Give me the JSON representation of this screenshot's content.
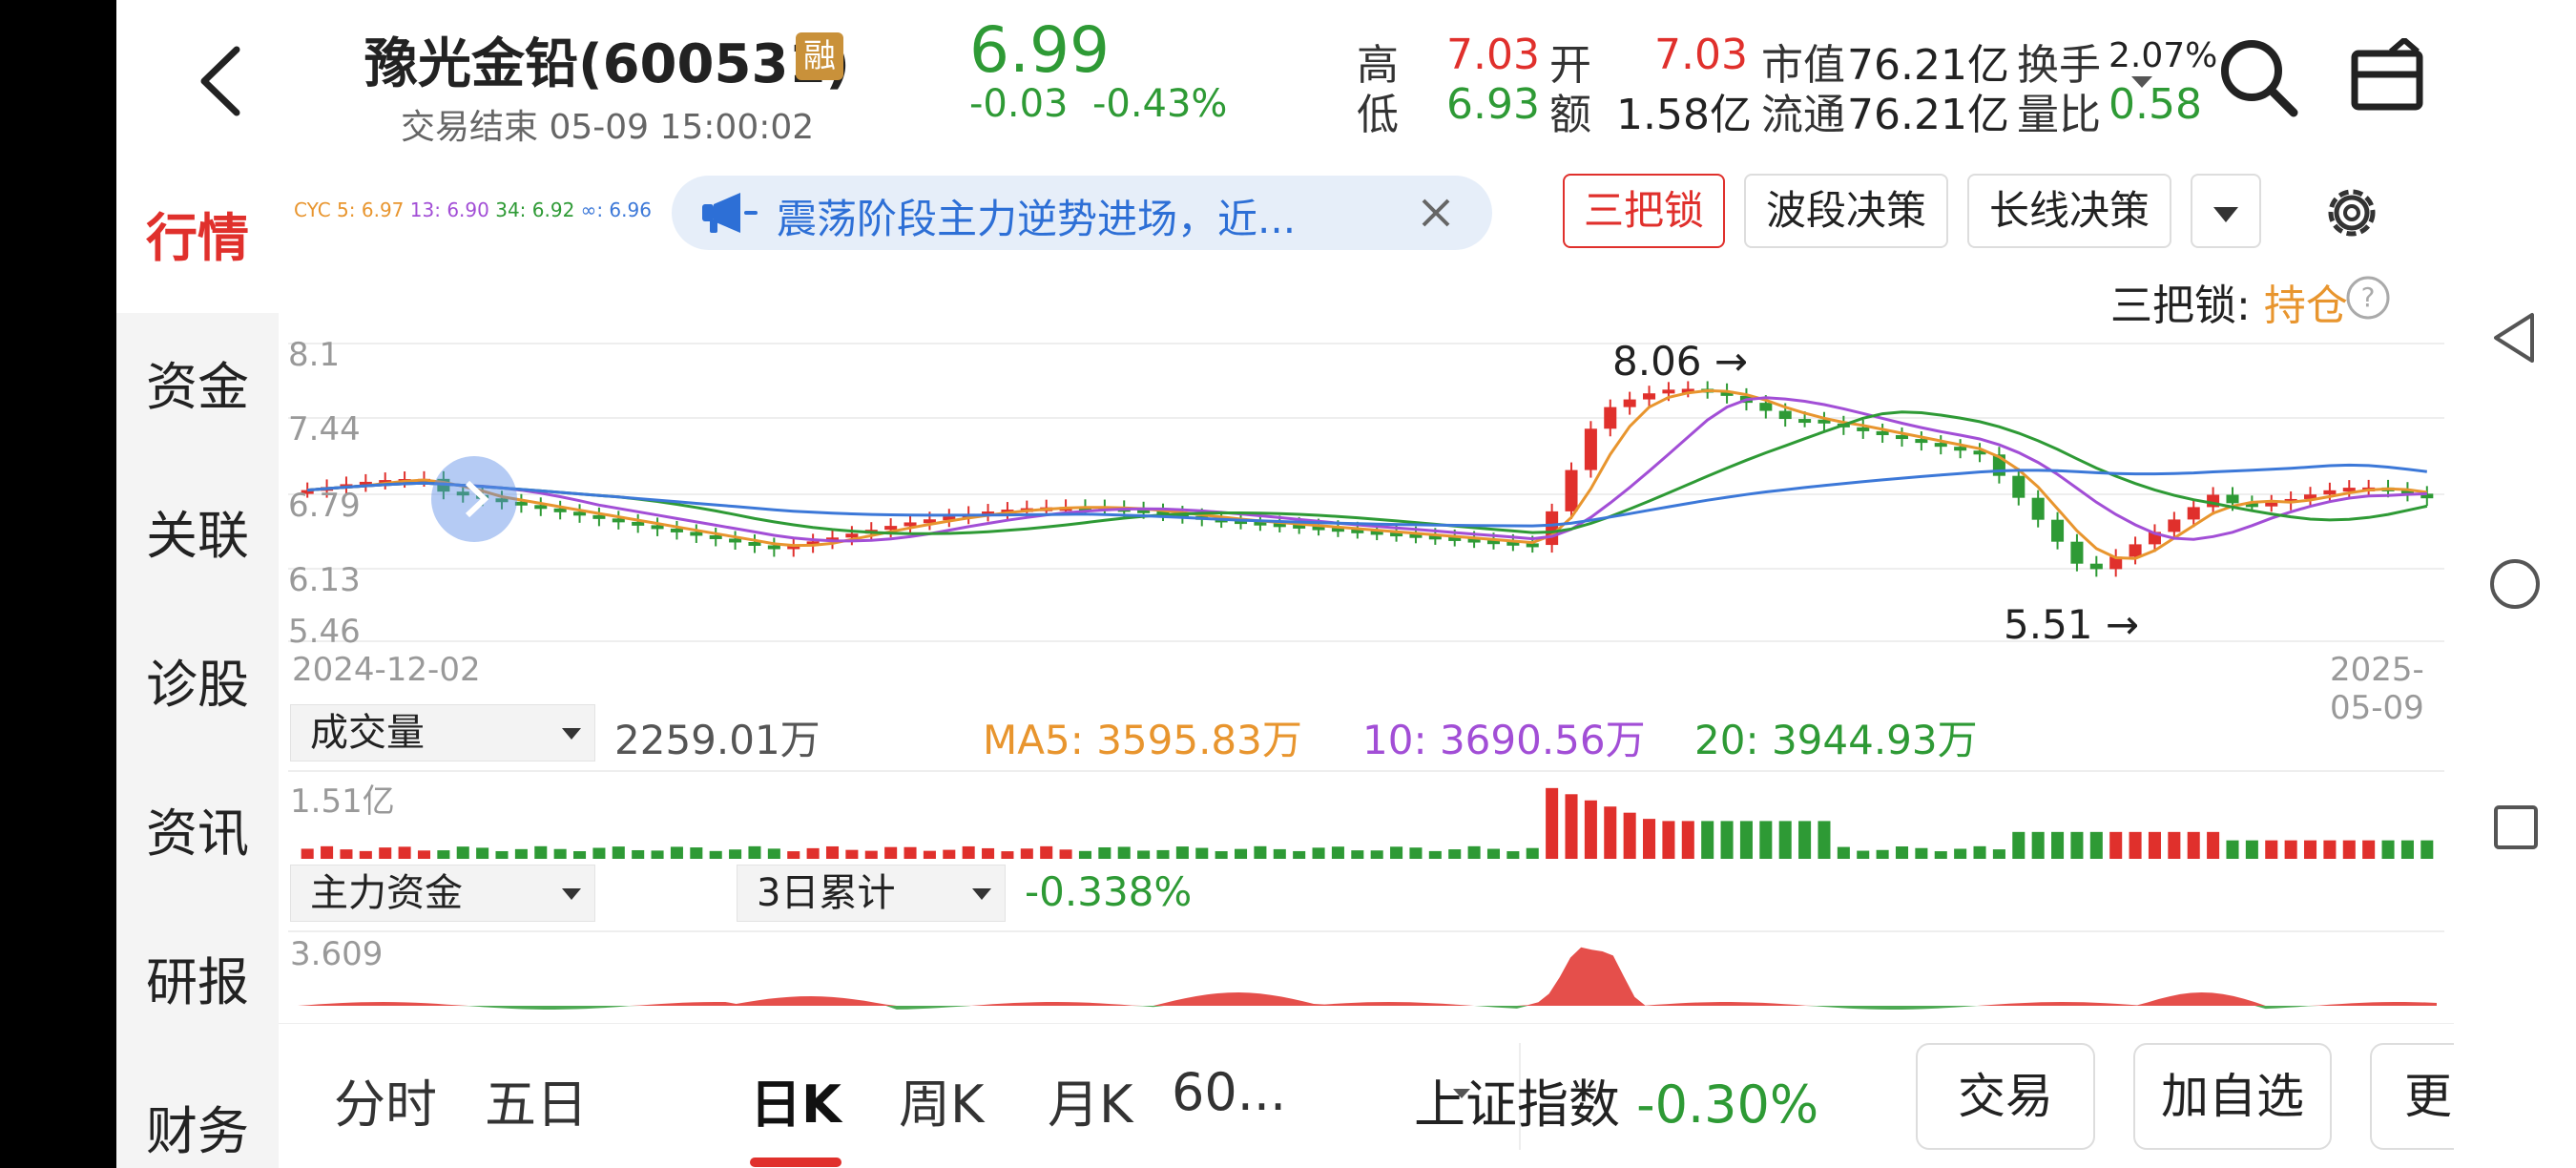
{
  "header": {
    "stock_name": "豫光金铅(600531)",
    "badge": "融",
    "status": "交易结束 05-09 15:00:02",
    "price": "6.99",
    "change": "-0.03",
    "change_pct": "-0.43%",
    "quotes": {
      "high_label": "高",
      "high": "7.03",
      "low_label": "低",
      "low": "6.93",
      "open_label": "开",
      "open": "7.03",
      "amount_label": "额",
      "amount": "1.58亿",
      "mktcap_label": "市值",
      "mktcap": "76.21亿",
      "float_label": "流通",
      "float": "76.21亿",
      "turnover_label": "换手",
      "turnover": "2.07%",
      "volratio_label": "量比",
      "volratio": "0.58"
    }
  },
  "sidebar": {
    "items": [
      "行情",
      "资金",
      "关联",
      "诊股",
      "资讯",
      "研报",
      "财务"
    ],
    "active": "行情"
  },
  "toolbar": {
    "ma_legend": {
      "cyc5": "CYC 5: 6.97",
      "cyc13": "13: 6.90",
      "cyc34": "34: 6.92",
      "cycinf": "∞: 6.96"
    },
    "notice": "震荡阶段主力逆势进场，近...",
    "buttons": [
      "三把锁",
      "波段决策",
      "长线决策"
    ],
    "lock_label": "三把锁:",
    "lock_value": "持仓"
  },
  "kline": {
    "y_ticks": [
      "8.1",
      "7.44",
      "6.79",
      "6.13",
      "5.46"
    ],
    "high_mark": "8.06",
    "low_mark": "5.51",
    "start_date": "2024-12-02",
    "end_date": "2025-05-09",
    "colors": {
      "up": "#e0302c",
      "down": "#2e9a35",
      "cyc5": "#e8952e",
      "cyc13": "#a24ed6",
      "cyc34": "#2e9a35",
      "cycinf": "#3c78d8"
    }
  },
  "volume": {
    "selector": "成交量",
    "current": "2259.01万",
    "ma5": "MA5: 3595.83万",
    "ma10": "10: 3690.56万",
    "ma20": "20: 3944.93万",
    "max_label": "1.51亿"
  },
  "capital": {
    "selector": "主力资金",
    "period": "3日累计",
    "value": "-0.338%",
    "max_label": "3.609"
  },
  "bottom": {
    "tabs": [
      "分时",
      "五日",
      "日K",
      "周K",
      "月K",
      "60..."
    ],
    "active_tab": "日K",
    "index_name": "上证指数",
    "index_change": "-0.30%",
    "buttons": [
      "交易",
      "加自选",
      "更多"
    ]
  }
}
